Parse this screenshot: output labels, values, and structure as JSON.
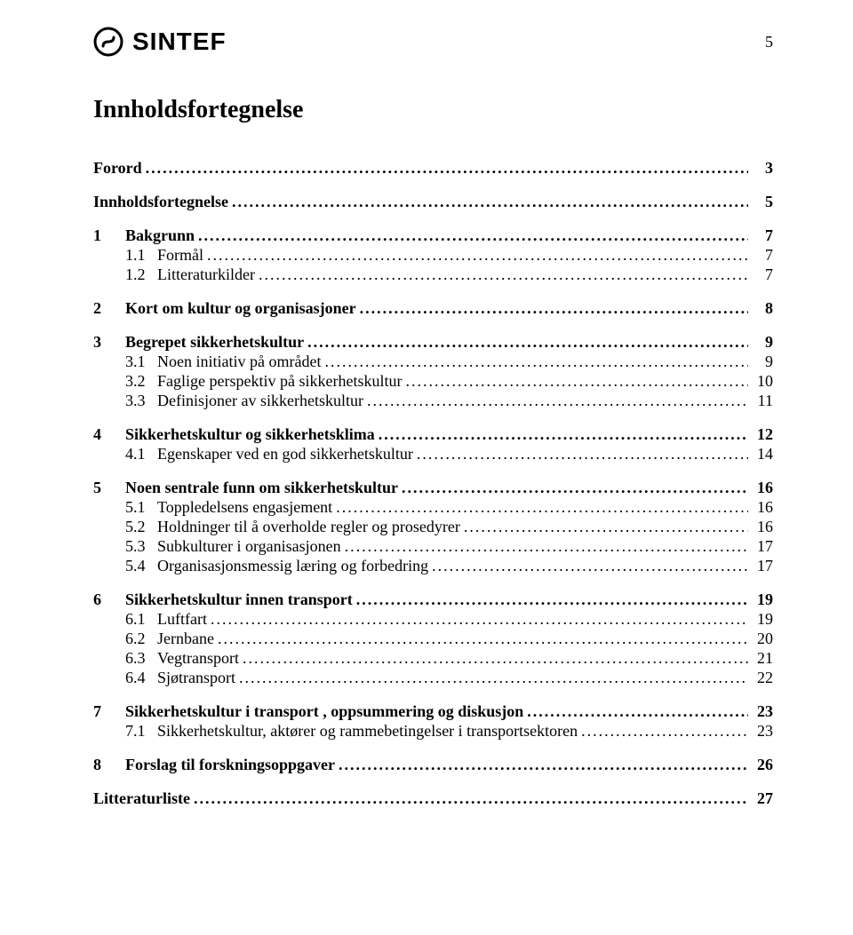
{
  "header": {
    "logo_text": "SINTEF",
    "page_number": "5"
  },
  "title": "Innholdsfortegnelse",
  "toc": [
    {
      "level": 1,
      "num": "",
      "label": "Forord",
      "page": "3"
    },
    {
      "level": 1,
      "num": "",
      "label": "Innholdsfortegnelse",
      "page": "5"
    },
    {
      "level": 1,
      "num": "1",
      "label": "Bakgrunn",
      "page": "7"
    },
    {
      "level": 2,
      "num": "1.1",
      "label": "Formål",
      "page": "7"
    },
    {
      "level": 2,
      "num": "1.2",
      "label": "Litteraturkilder",
      "page": "7"
    },
    {
      "level": 1,
      "num": "2",
      "label": "Kort om kultur og organisasjoner",
      "page": "8"
    },
    {
      "level": 1,
      "num": "3",
      "label": "Begrepet sikkerhetskultur",
      "page": "9"
    },
    {
      "level": 2,
      "num": "3.1",
      "label": "Noen initiativ på området",
      "page": "9"
    },
    {
      "level": 2,
      "num": "3.2",
      "label": "Faglige perspektiv på sikkerhetskultur",
      "page": "10"
    },
    {
      "level": 2,
      "num": "3.3",
      "label": "Definisjoner av sikkerhetskultur",
      "page": "11"
    },
    {
      "level": 1,
      "num": "4",
      "label": "Sikkerhetskultur og sikkerhetsklima",
      "page": "12"
    },
    {
      "level": 2,
      "num": "4.1",
      "label": "Egenskaper ved en god sikkerhetskultur",
      "page": "14"
    },
    {
      "level": 1,
      "num": "5",
      "label": "Noen sentrale funn om sikkerhetskultur",
      "page": "16"
    },
    {
      "level": 2,
      "num": "5.1",
      "label": "Toppledelsens engasjement",
      "page": "16"
    },
    {
      "level": 2,
      "num": "5.2",
      "label": "Holdninger til å overholde regler og prosedyrer",
      "page": "16"
    },
    {
      "level": 2,
      "num": "5.3",
      "label": "Subkulturer i organisasjonen",
      "page": "17"
    },
    {
      "level": 2,
      "num": "5.4",
      "label": "Organisasjonsmessig læring og forbedring",
      "page": "17"
    },
    {
      "level": 1,
      "num": "6",
      "label": "Sikkerhetskultur innen transport",
      "page": "19"
    },
    {
      "level": 2,
      "num": "6.1",
      "label": "Luftfart",
      "page": "19"
    },
    {
      "level": 2,
      "num": "6.2",
      "label": "Jernbane",
      "page": "20"
    },
    {
      "level": 2,
      "num": "6.3",
      "label": "Vegtransport",
      "page": "21"
    },
    {
      "level": 2,
      "num": "6.4",
      "label": "Sjøtransport",
      "page": "22"
    },
    {
      "level": 1,
      "num": "7",
      "label": "Sikkerhetskultur i transport , oppsummering og diskusjon",
      "page": "23"
    },
    {
      "level": 2,
      "num": "7.1",
      "label": "Sikkerhetskultur, aktører og rammebetingelser i transportsektoren",
      "page": "23"
    },
    {
      "level": 1,
      "num": "8",
      "label": "Forslag til forskningsoppgaver",
      "page": "26"
    },
    {
      "level": 1,
      "num": "",
      "label": "Litteraturliste",
      "page": "27"
    }
  ]
}
